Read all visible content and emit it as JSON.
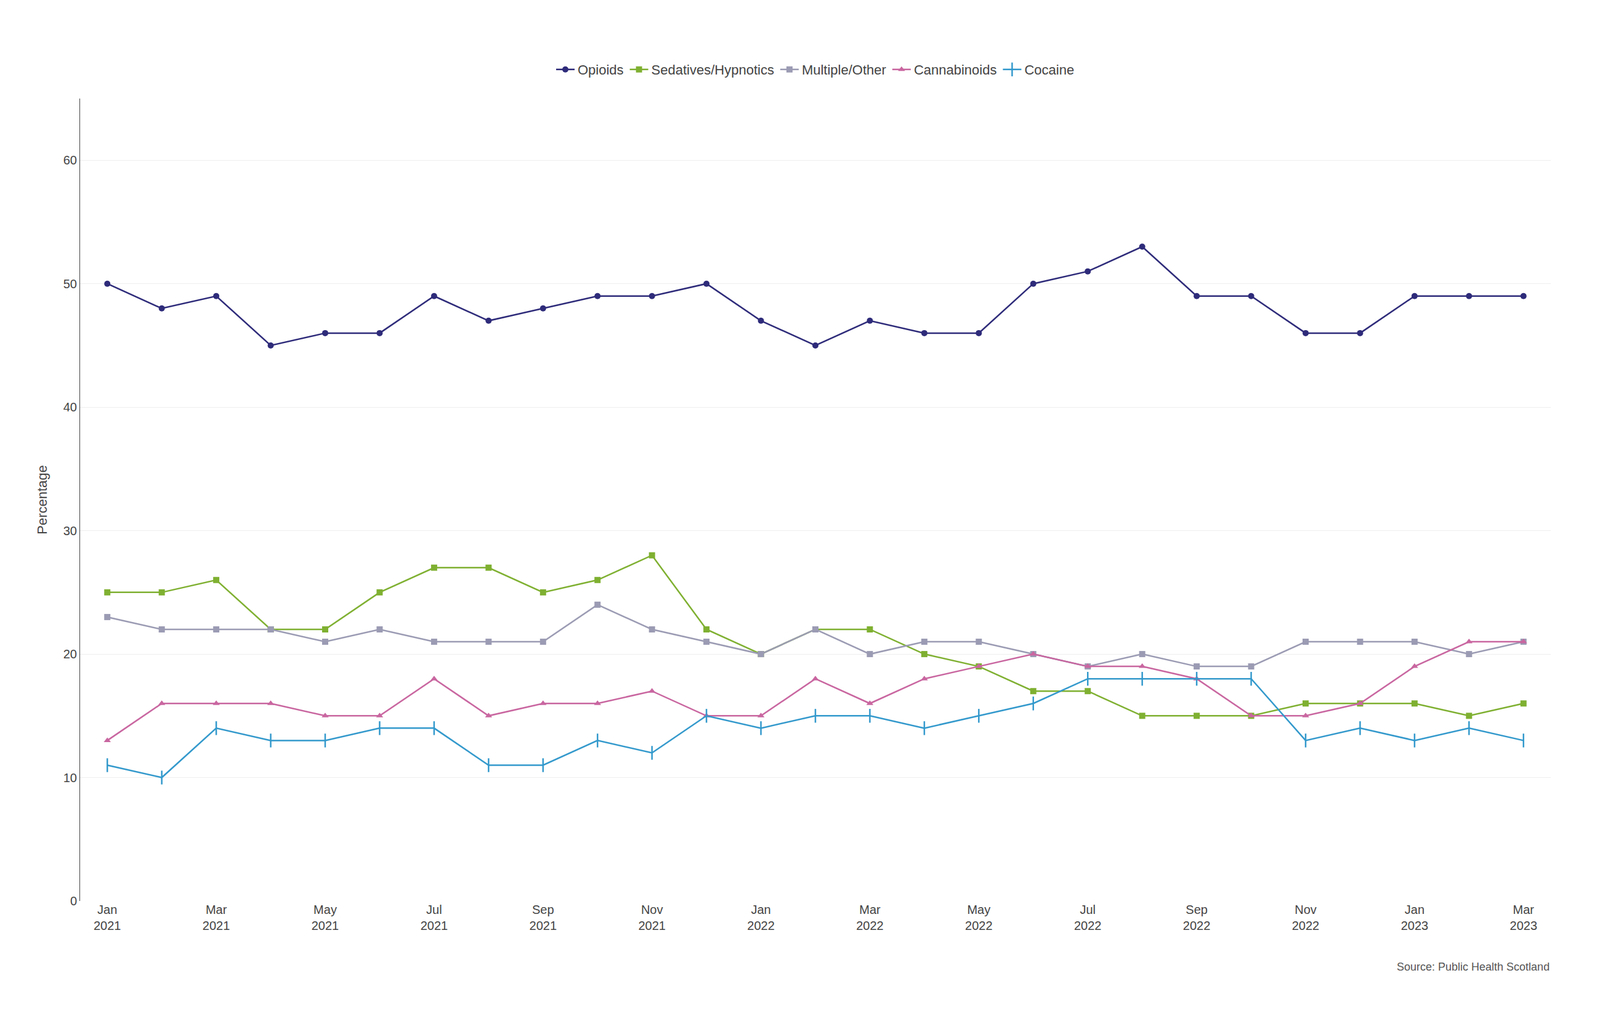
{
  "chart_data": {
    "type": "line",
    "ylabel": "Percentage",
    "annotations": [
      "Source: Public Health Scotland"
    ],
    "categories": [
      "Jan\n2021",
      null,
      "Mar\n2021",
      null,
      "May\n2021",
      null,
      "Jul\n2021",
      null,
      "Sep\n2021",
      null,
      "Nov\n2021",
      null,
      "Jan\n2022",
      null,
      "Mar\n2022",
      null,
      "May\n2022",
      null,
      "Jul\n2022",
      null,
      "Sep\n2022",
      null,
      "Nov\n2022",
      null,
      "Jan\n2023",
      null,
      "Mar\n2023"
    ],
    "series": [
      {
        "name": "Opioids",
        "color": "#2e2b7a",
        "marker": "circle",
        "values": [
          50,
          48,
          49,
          45,
          46,
          46,
          49,
          47,
          48,
          49,
          49,
          50,
          47,
          45,
          47,
          46,
          46,
          50,
          51,
          53,
          49,
          49,
          46,
          46,
          49,
          49,
          49
        ]
      },
      {
        "name": "Sedatives/Hypnotics",
        "color": "#7fb031",
        "marker": "square",
        "values": [
          25,
          25,
          26,
          22,
          22,
          25,
          27,
          27,
          25,
          26,
          28,
          22,
          20,
          22,
          22,
          20,
          19,
          17,
          17,
          15,
          15,
          15,
          16,
          16,
          16,
          15,
          16
        ]
      },
      {
        "name": "Multiple/Other",
        "color": "#9b9bb4",
        "marker": "square",
        "values": [
          23,
          22,
          22,
          22,
          21,
          22,
          21,
          21,
          21,
          24,
          22,
          21,
          20,
          22,
          20,
          21,
          21,
          20,
          19,
          20,
          19,
          19,
          21,
          21,
          21,
          20,
          21
        ]
      },
      {
        "name": "Cannabinoids",
        "color": "#c966a0",
        "marker": "triangle",
        "values": [
          13,
          16,
          16,
          16,
          15,
          15,
          18,
          15,
          16,
          16,
          17,
          15,
          15,
          18,
          16,
          18,
          19,
          20,
          19,
          19,
          18,
          15,
          15,
          16,
          19,
          21,
          21
        ]
      },
      {
        "name": "Cocaine",
        "color": "#3399cc",
        "marker": "vline",
        "values": [
          11,
          10,
          14,
          13,
          13,
          14,
          14,
          11,
          11,
          13,
          12,
          15,
          14,
          15,
          15,
          14,
          15,
          16,
          18,
          18,
          18,
          18,
          13,
          14,
          13,
          14,
          13
        ]
      }
    ],
    "ylim": [
      0,
      65
    ],
    "yticks": [
      0,
      10,
      20,
      30,
      40,
      50,
      60
    ],
    "grid": true,
    "legend": "top"
  }
}
